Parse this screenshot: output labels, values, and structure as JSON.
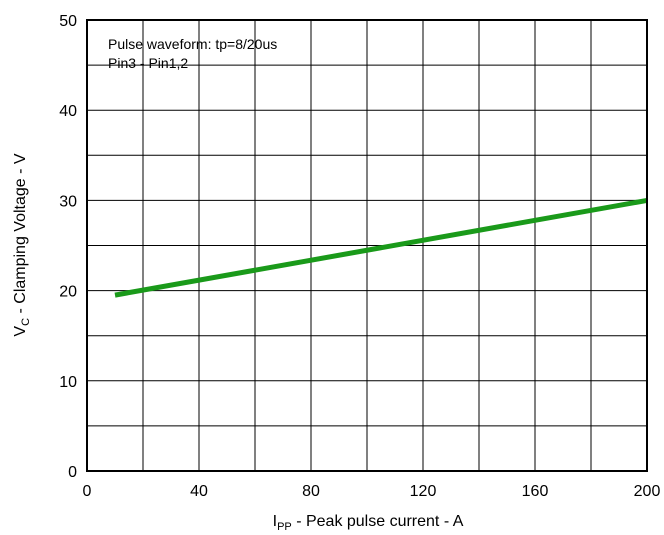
{
  "chart_data": {
    "type": "line",
    "xlabel": {
      "main": "I",
      "sub": "PP",
      "rest": " - Peak pulse current - A"
    },
    "ylabel": {
      "main": "V",
      "sub": "C",
      "rest": " - Clamping Voltage - V"
    },
    "xlim": [
      0,
      200
    ],
    "ylim": [
      0,
      50
    ],
    "x_ticks": [
      0,
      40,
      80,
      120,
      160,
      200
    ],
    "y_ticks": [
      0,
      10,
      20,
      30,
      40,
      50
    ],
    "x_grid_step": 20,
    "y_grid_step": 5,
    "grid": true,
    "annotations": [
      "Pulse waveform: tp=8/20us",
      "Pin3 - Pin1,2"
    ],
    "series": [
      {
        "color": "#1a9a1a",
        "x": [
          10,
          200
        ],
        "y": [
          19.5,
          30
        ]
      }
    ]
  }
}
